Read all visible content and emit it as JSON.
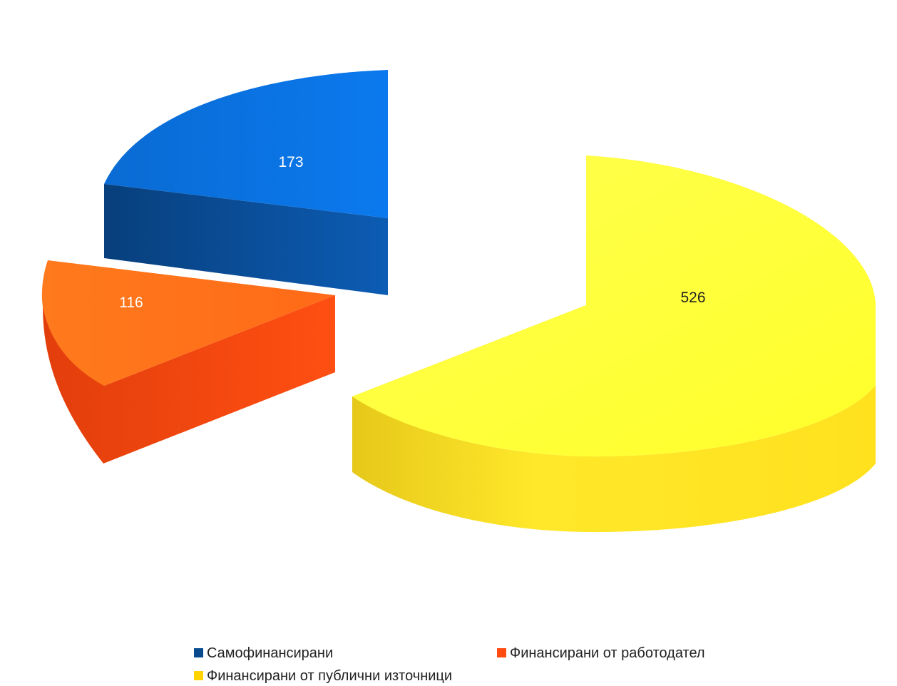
{
  "chart_data": {
    "type": "pie",
    "style": "3d-exploded",
    "title": "",
    "series": [
      {
        "values": [
          173,
          116,
          526
        ],
        "categories": [
          "Самофинансирани",
          "Финансирани от работодател",
          "Финансирани от публични източници"
        ]
      }
    ],
    "slices": [
      {
        "label": "Самофинансирани",
        "value": 173,
        "color": "#0a6fd6",
        "label_color": "#ffffff"
      },
      {
        "label": "Финансирани от работодател",
        "value": 116,
        "color": "#ff6a1a",
        "label_color": "#ffffff"
      },
      {
        "label": "Финансирани от публични източници",
        "value": 526,
        "color": "#ffff3a",
        "label_color": "#222222"
      }
    ],
    "legend": {
      "position": "bottom",
      "items": [
        "Самофинансирани",
        "Финансирани от работодател",
        "Финансирани от публични източници"
      ],
      "colors": [
        "#0a4a8f",
        "#ff4a10",
        "#ffd400"
      ]
    }
  }
}
